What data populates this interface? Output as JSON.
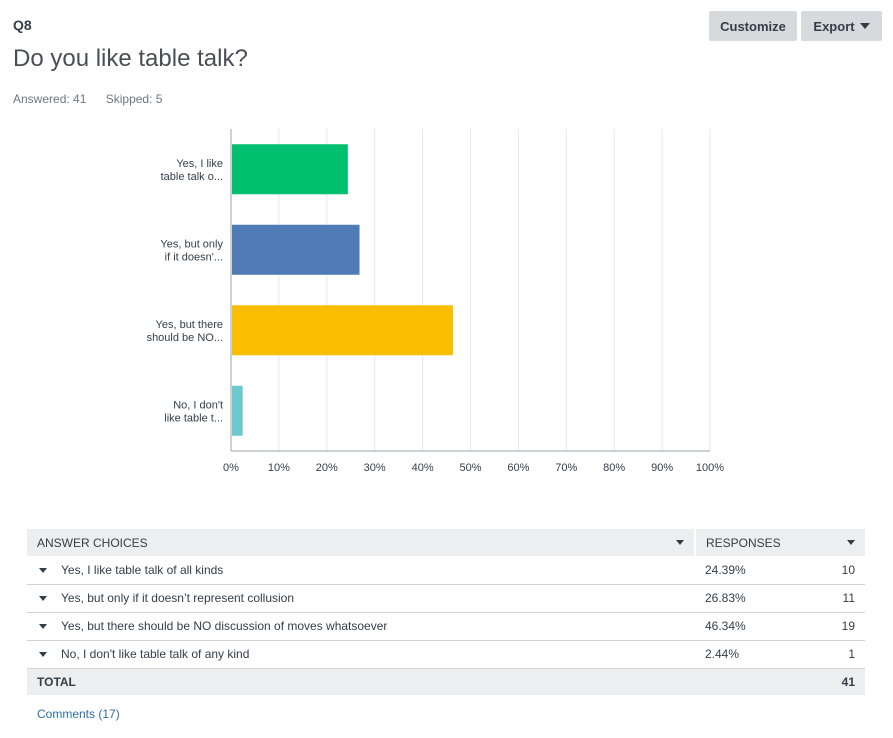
{
  "question": {
    "number": "Q8",
    "title": "Do you like table talk?",
    "answered": "Answered: 41",
    "skipped": "Skipped: 5"
  },
  "toolbar": {
    "customize_label": "Customize",
    "export_label": "Export"
  },
  "chart_data": {
    "type": "bar",
    "orientation": "horizontal",
    "categories": [
      "Yes, I like table talk o...",
      "Yes, but only if it doesn'...",
      "Yes, but there should be NO...",
      "No, I don't like table t..."
    ],
    "category_lines": [
      [
        "Yes, I like",
        "table talk o..."
      ],
      [
        "Yes, but only",
        "if it doesn'..."
      ],
      [
        "Yes, but there",
        "should be NO..."
      ],
      [
        "No, I don't",
        "like table t..."
      ]
    ],
    "values": [
      24.39,
      26.83,
      46.34,
      2.44
    ],
    "colors": [
      "#00bf6f",
      "#507cb6",
      "#f9be00",
      "#6bc8cd"
    ],
    "xlim": [
      0,
      100
    ],
    "xticks": [
      "0%",
      "10%",
      "20%",
      "30%",
      "40%",
      "50%",
      "60%",
      "70%",
      "80%",
      "90%",
      "100%"
    ],
    "grid": true
  },
  "table": {
    "headers": {
      "choices": "ANSWER CHOICES",
      "responses": "RESPONSES"
    },
    "rows": [
      {
        "choice": "Yes, I like table talk of all kinds",
        "percent": "24.39%",
        "count": "10"
      },
      {
        "choice": "Yes, but only if it doesn’t represent collusion",
        "percent": "26.83%",
        "count": "11"
      },
      {
        "choice": "Yes, but there should be NO discussion of moves whatsoever",
        "percent": "46.34%",
        "count": "19"
      },
      {
        "choice": "No, I don't like table talk of any kind",
        "percent": "2.44%",
        "count": "1"
      }
    ],
    "total_label": "TOTAL",
    "total_count": "41"
  },
  "comments_link": "Comments (17)"
}
